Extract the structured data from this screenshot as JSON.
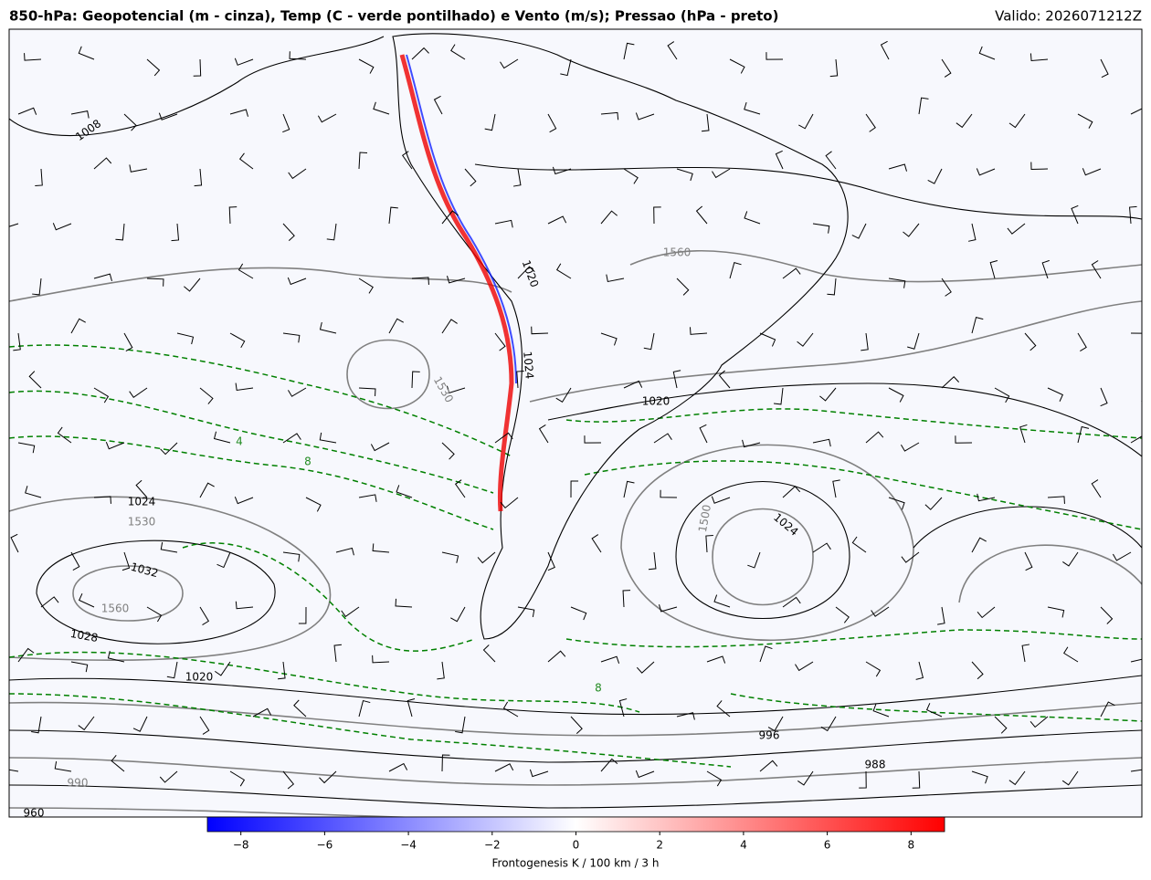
{
  "header": {
    "title": "850-hPa: Geopotencial (m - cinza), Temp (C - verde pontilhado) e Vento (m/s); Pressao (hPa - preto)",
    "valid": "Valido: 2026071212Z"
  },
  "map": {
    "contour_labels": [
      "1008",
      "1560",
      "1530",
      "1020",
      "1024",
      "1020",
      "1024",
      "1530",
      "1032",
      "1560",
      "1028",
      "1020",
      "1500",
      "1024",
      "996",
      "988",
      "990",
      "960",
      "8",
      "4",
      "8"
    ]
  },
  "colorbar": {
    "label": "Frontogenesis K / 100 km / 3 h",
    "colors": [
      "#0000ff",
      "#ffffff",
      "#ff0000"
    ],
    "xlim": [
      -8.8,
      8.8
    ],
    "xticks": [
      {
        "value": -8,
        "label": "−8"
      },
      {
        "value": -6,
        "label": "−6"
      },
      {
        "value": -4,
        "label": "−4"
      },
      {
        "value": -2,
        "label": "−2"
      },
      0,
      2,
      4,
      6,
      8
    ]
  }
}
